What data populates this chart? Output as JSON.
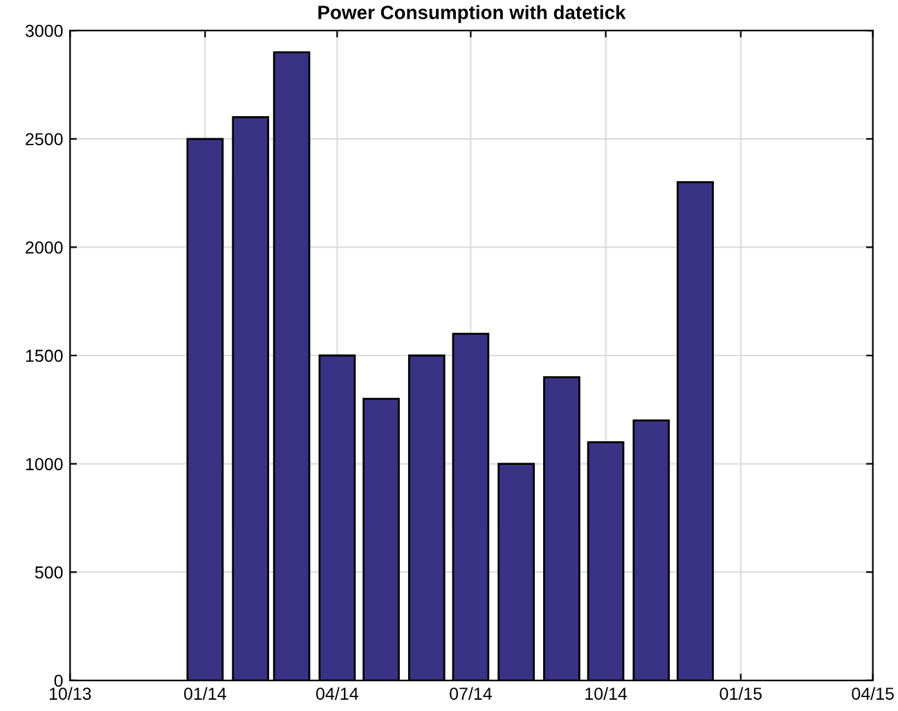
{
  "chart_data": {
    "type": "bar",
    "title": "Power Consumption with datetick",
    "x": [
      "2014-01",
      "2014-02",
      "2014-03",
      "2014-04",
      "2014-05",
      "2014-06",
      "2014-07",
      "2014-08",
      "2014-09",
      "2014-10",
      "2014-11",
      "2014-12"
    ],
    "values": [
      2500,
      2600,
      2900,
      1500,
      1300,
      1500,
      1600,
      1000,
      1400,
      1100,
      1200,
      2300
    ],
    "color": "#3a3285",
    "xlim": [
      "2013-10-01",
      "2015-04-01"
    ],
    "xticks": [
      {
        "value": "2013-10-01",
        "label": "10/13"
      },
      {
        "value": "2014-01-01",
        "label": "01/14"
      },
      {
        "value": "2014-04-01",
        "label": "04/14"
      },
      {
        "value": "2014-07-01",
        "label": "07/14"
      },
      {
        "value": "2014-10-01",
        "label": "10/14"
      },
      {
        "value": "2015-01-01",
        "label": "01/15"
      },
      {
        "value": "2015-04-01",
        "label": "04/15"
      }
    ],
    "ylim": [
      0,
      3000
    ],
    "yticks": [
      0,
      500,
      1000,
      1500,
      2000,
      2500,
      3000
    ],
    "grid": true
  }
}
